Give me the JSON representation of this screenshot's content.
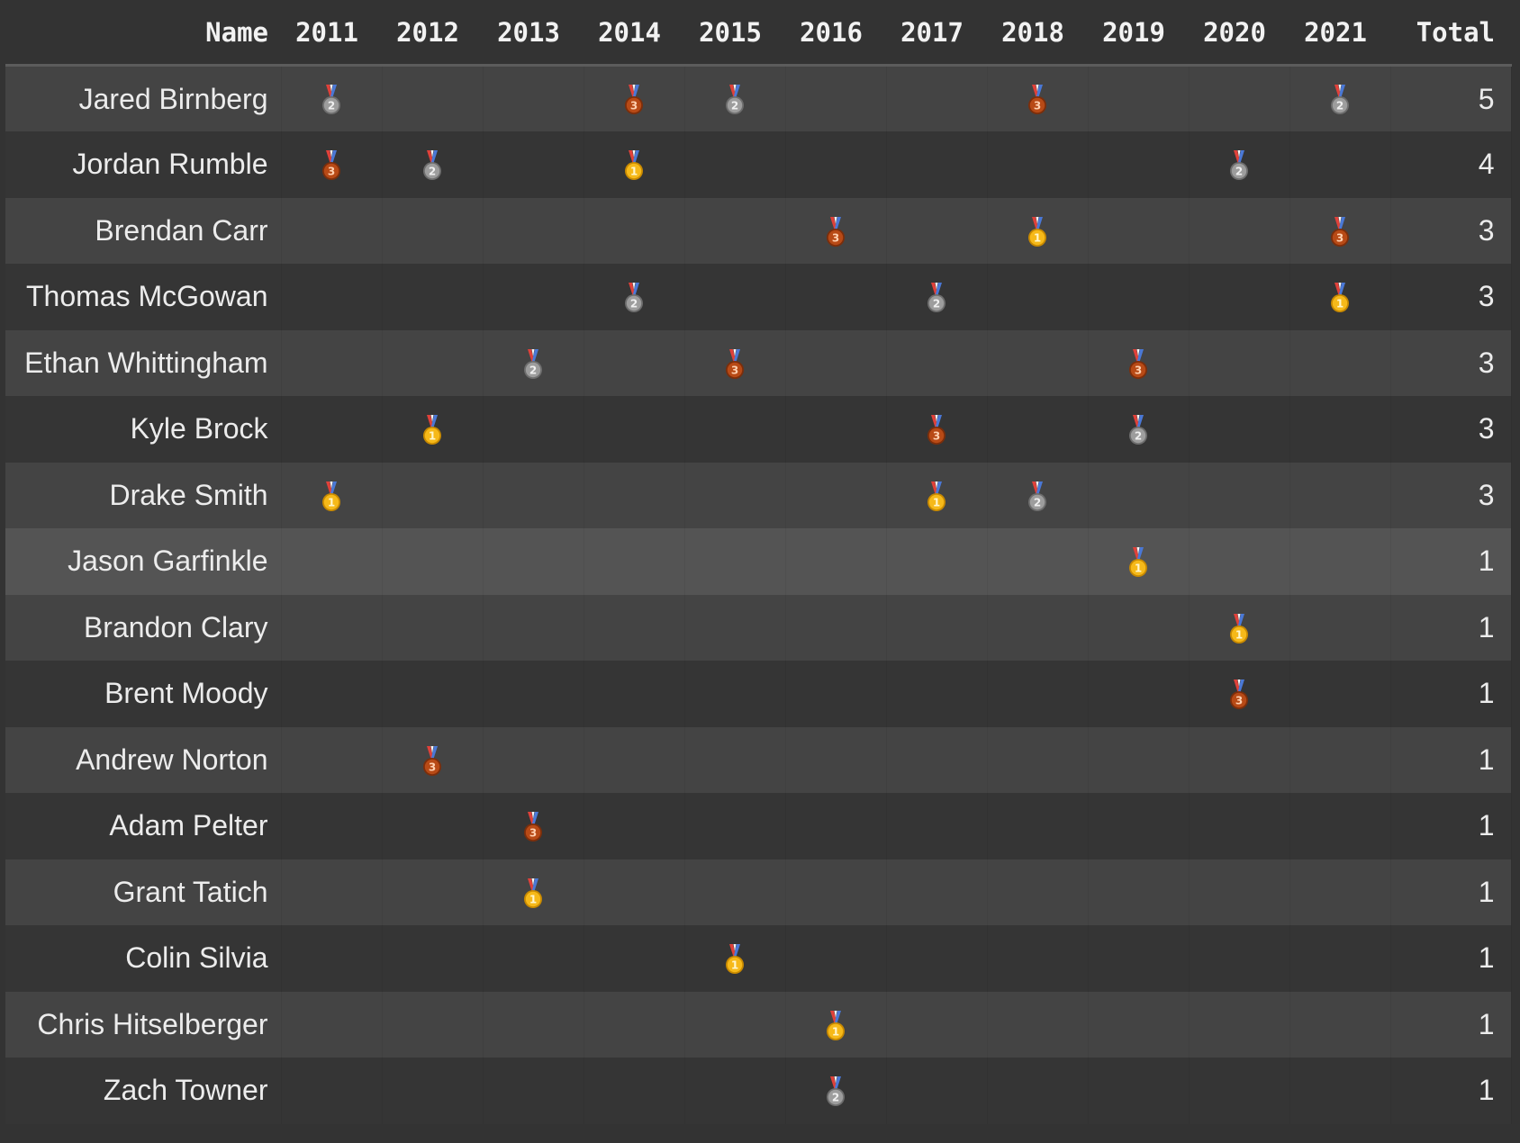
{
  "table": {
    "columns": [
      "Name",
      "2011",
      "2012",
      "2013",
      "2014",
      "2015",
      "2016",
      "2017",
      "2018",
      "2019",
      "2020",
      "2021",
      "Total"
    ],
    "years": [
      "2011",
      "2012",
      "2013",
      "2014",
      "2015",
      "2016",
      "2017",
      "2018",
      "2019",
      "2020",
      "2021"
    ],
    "hovered_row": 7,
    "medal_colors": {
      "1": {
        "fill": "#f6b919",
        "edge": "#c98a00",
        "text": "#fff6cc"
      },
      "2": {
        "fill": "#9d9d9d",
        "edge": "#6e6e6e",
        "text": "#f0f0f0"
      },
      "3": {
        "fill": "#b84a16",
        "edge": "#7c2e0b",
        "text": "#ffd0b0"
      }
    },
    "medal_icons": {
      "1": "gold-medal-icon",
      "2": "silver-medal-icon",
      "3": "bronze-medal-icon"
    },
    "rows": [
      {
        "name": "Jared Birnberg",
        "medals": [
          2,
          null,
          null,
          3,
          2,
          null,
          null,
          3,
          null,
          null,
          2
        ],
        "total": "5"
      },
      {
        "name": "Jordan Rumble",
        "medals": [
          3,
          2,
          null,
          1,
          null,
          null,
          null,
          null,
          null,
          2,
          null
        ],
        "total": "4"
      },
      {
        "name": "Brendan Carr",
        "medals": [
          null,
          null,
          null,
          null,
          null,
          3,
          null,
          1,
          null,
          null,
          3
        ],
        "total": "3"
      },
      {
        "name": "Thomas McGowan",
        "medals": [
          null,
          null,
          null,
          2,
          null,
          null,
          2,
          null,
          null,
          null,
          1
        ],
        "total": "3"
      },
      {
        "name": "Ethan Whittingham",
        "medals": [
          null,
          null,
          2,
          null,
          3,
          null,
          null,
          null,
          3,
          null,
          null
        ],
        "total": "3"
      },
      {
        "name": "Kyle Brock",
        "medals": [
          null,
          1,
          null,
          null,
          null,
          null,
          3,
          null,
          2,
          null,
          null
        ],
        "total": "3"
      },
      {
        "name": "Drake Smith",
        "medals": [
          1,
          null,
          null,
          null,
          null,
          null,
          1,
          2,
          null,
          null,
          null
        ],
        "total": "3"
      },
      {
        "name": "Jason Garfinkle",
        "medals": [
          null,
          null,
          null,
          null,
          null,
          null,
          null,
          null,
          1,
          null,
          null
        ],
        "total": "1"
      },
      {
        "name": "Brandon Clary",
        "medals": [
          null,
          null,
          null,
          null,
          null,
          null,
          null,
          null,
          null,
          1,
          null
        ],
        "total": "1"
      },
      {
        "name": "Brent Moody",
        "medals": [
          null,
          null,
          null,
          null,
          null,
          null,
          null,
          null,
          null,
          3,
          null
        ],
        "total": "1"
      },
      {
        "name": "Andrew Norton",
        "medals": [
          null,
          3,
          null,
          null,
          null,
          null,
          null,
          null,
          null,
          null,
          null
        ],
        "total": "1"
      },
      {
        "name": "Adam Pelter",
        "medals": [
          null,
          null,
          3,
          null,
          null,
          null,
          null,
          null,
          null,
          null,
          null
        ],
        "total": "1"
      },
      {
        "name": "Grant Tatich",
        "medals": [
          null,
          null,
          1,
          null,
          null,
          null,
          null,
          null,
          null,
          null,
          null
        ],
        "total": "1"
      },
      {
        "name": "Colin Silvia",
        "medals": [
          null,
          null,
          null,
          null,
          1,
          null,
          null,
          null,
          null,
          null,
          null
        ],
        "total": "1"
      },
      {
        "name": "Chris Hitselberger",
        "medals": [
          null,
          null,
          null,
          null,
          null,
          1,
          null,
          null,
          null,
          null,
          null
        ],
        "total": "1"
      },
      {
        "name": "Zach Towner",
        "medals": [
          null,
          null,
          null,
          null,
          null,
          2,
          null,
          null,
          null,
          null,
          null
        ],
        "total": "1"
      }
    ]
  }
}
